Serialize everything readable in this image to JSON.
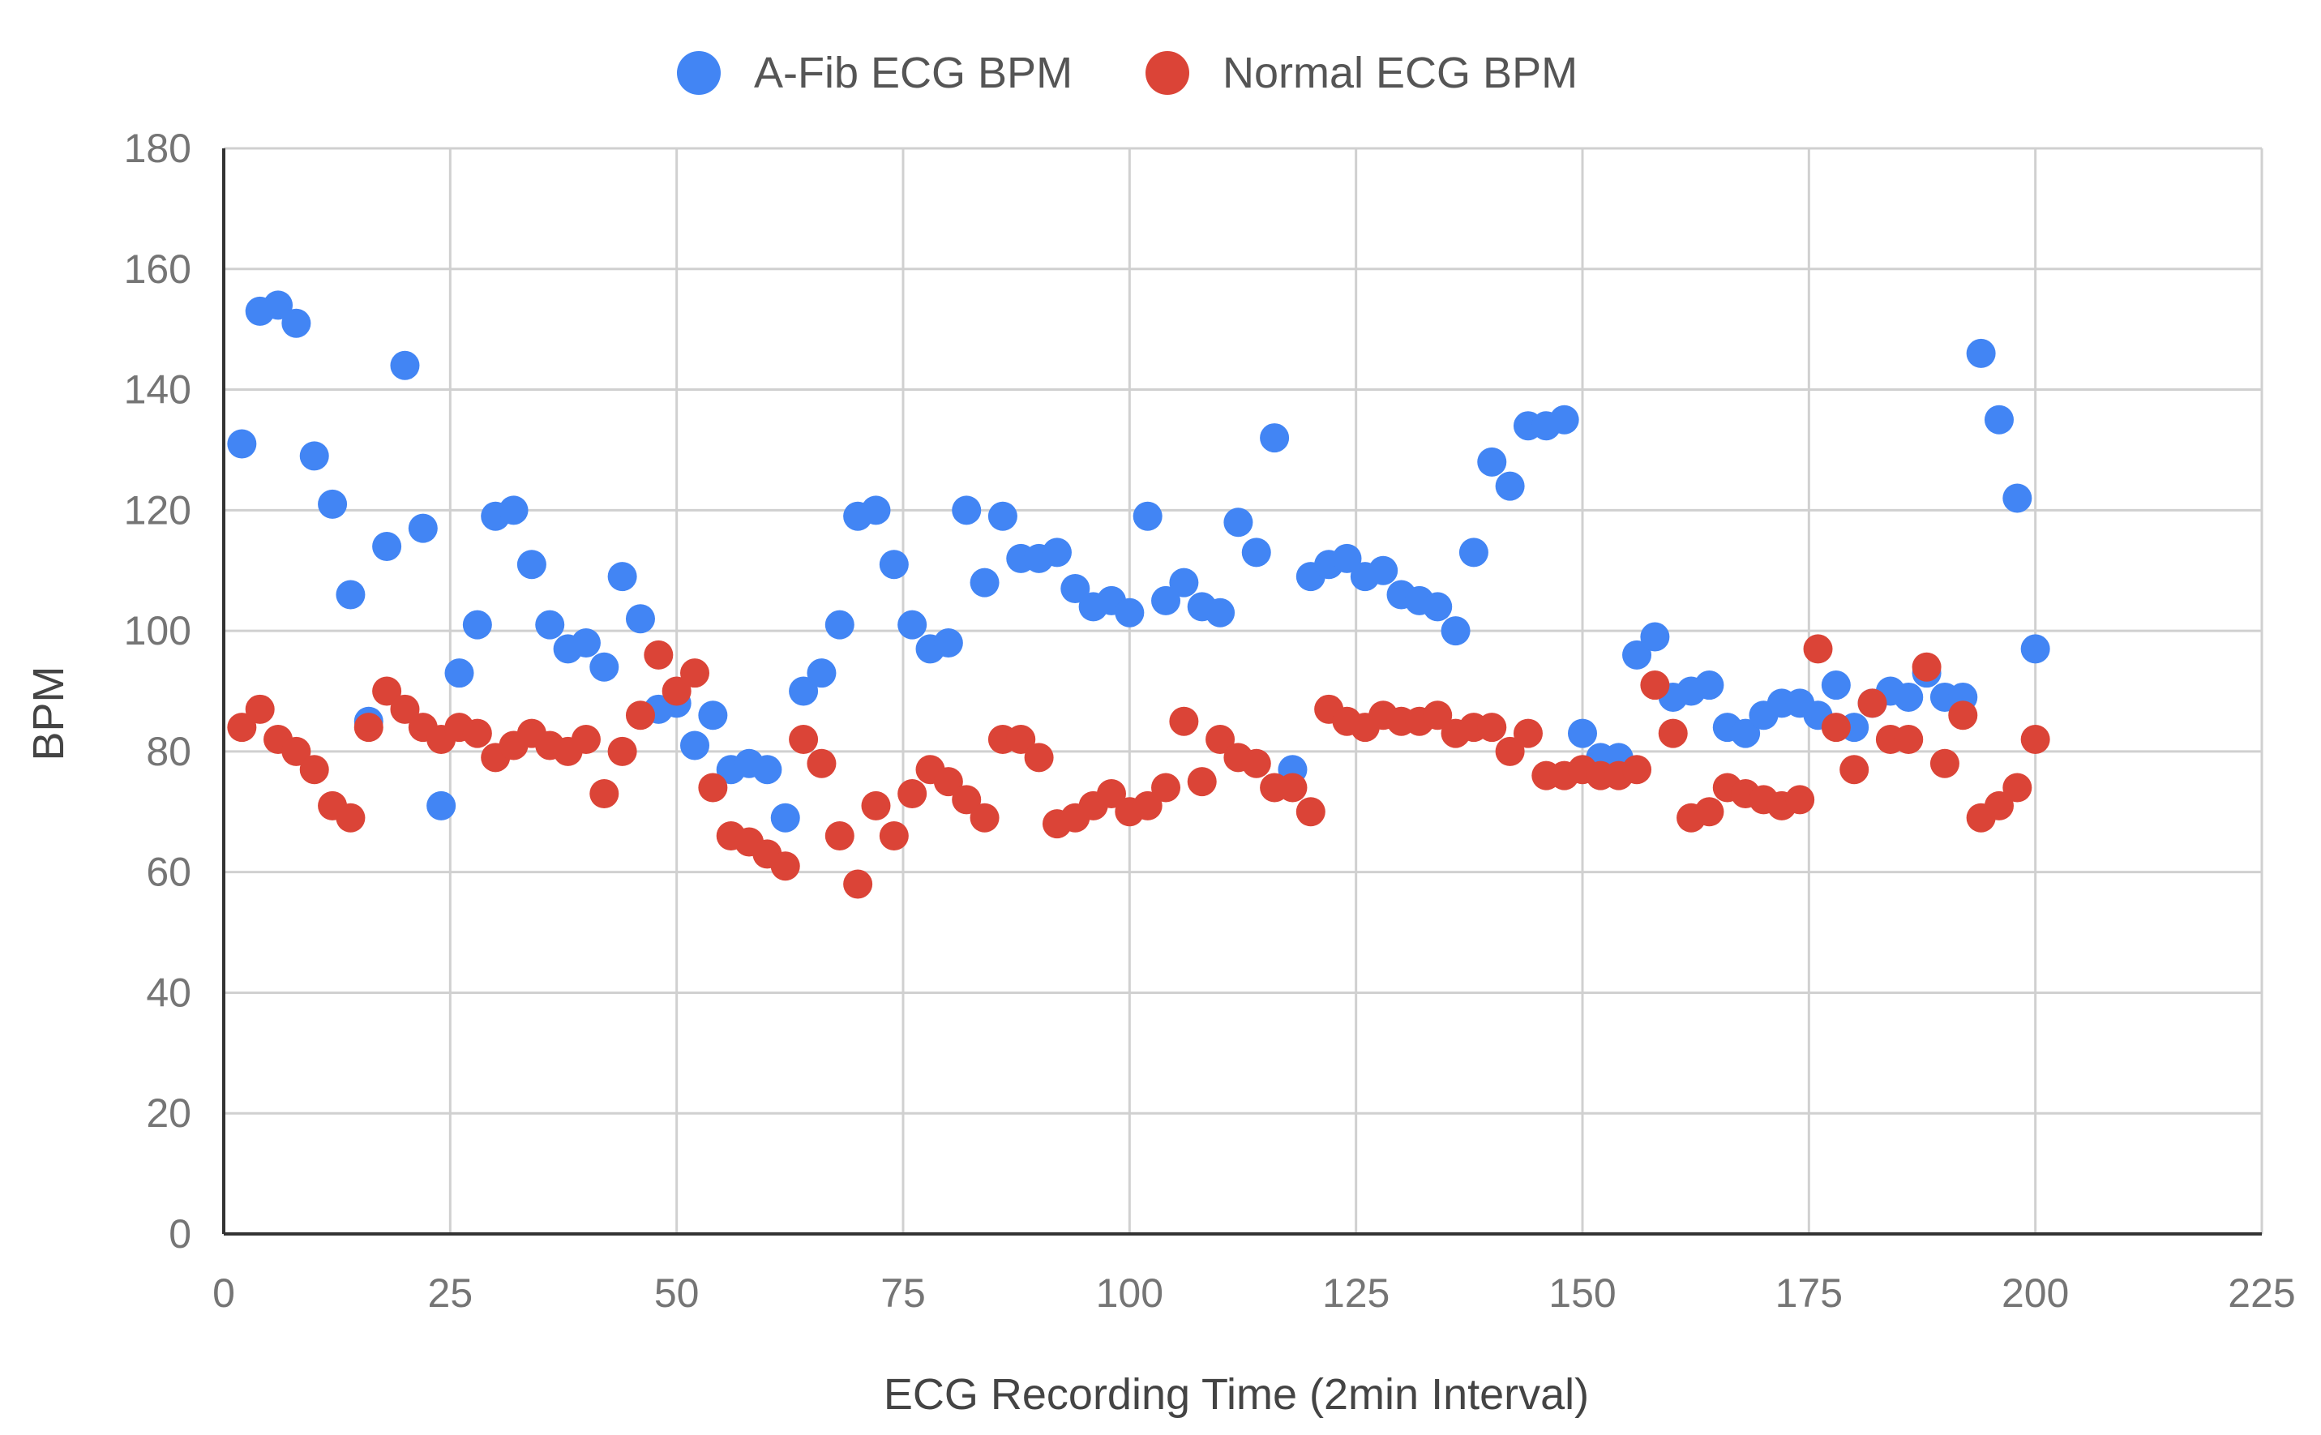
{
  "chart_data": {
    "type": "scatter",
    "title": "",
    "xlabel": "ECG Recording Time (2min Interval)",
    "ylabel": "BPM",
    "xlim": [
      0,
      225
    ],
    "ylim": [
      0,
      180
    ],
    "x_ticks": [
      0,
      25,
      50,
      75,
      100,
      125,
      150,
      175,
      200,
      225
    ],
    "y_ticks": [
      0,
      20,
      40,
      60,
      80,
      100,
      120,
      140,
      160,
      180
    ],
    "grid": true,
    "legend_position": "top",
    "series": [
      {
        "name": "A-Fib ECG BPM",
        "color": "#4285F4",
        "points": [
          [
            2,
            131
          ],
          [
            4,
            153
          ],
          [
            6,
            154
          ],
          [
            8,
            151
          ],
          [
            10,
            129
          ],
          [
            12,
            121
          ],
          [
            14,
            106
          ],
          [
            16,
            85
          ],
          [
            18,
            114
          ],
          [
            20,
            144
          ],
          [
            22,
            117
          ],
          [
            24,
            71
          ],
          [
            26,
            93
          ],
          [
            28,
            101
          ],
          [
            30,
            119
          ],
          [
            32,
            120
          ],
          [
            34,
            111
          ],
          [
            36,
            101
          ],
          [
            38,
            97
          ],
          [
            40,
            98
          ],
          [
            42,
            94
          ],
          [
            44,
            109
          ],
          [
            46,
            102
          ],
          [
            48,
            87
          ],
          [
            50,
            88
          ],
          [
            52,
            81
          ],
          [
            54,
            86
          ],
          [
            56,
            77
          ],
          [
            58,
            78
          ],
          [
            60,
            77
          ],
          [
            62,
            69
          ],
          [
            64,
            90
          ],
          [
            66,
            93
          ],
          [
            68,
            101
          ],
          [
            70,
            119
          ],
          [
            72,
            120
          ],
          [
            74,
            111
          ],
          [
            76,
            101
          ],
          [
            78,
            97
          ],
          [
            80,
            98
          ],
          [
            82,
            120
          ],
          [
            84,
            108
          ],
          [
            86,
            119
          ],
          [
            88,
            112
          ],
          [
            90,
            112
          ],
          [
            92,
            113
          ],
          [
            94,
            107
          ],
          [
            96,
            104
          ],
          [
            98,
            105
          ],
          [
            100,
            103
          ],
          [
            102,
            119
          ],
          [
            104,
            105
          ],
          [
            106,
            108
          ],
          [
            108,
            104
          ],
          [
            110,
            103
          ],
          [
            112,
            118
          ],
          [
            114,
            113
          ],
          [
            116,
            132
          ],
          [
            118,
            77
          ],
          [
            120,
            109
          ],
          [
            122,
            111
          ],
          [
            124,
            112
          ],
          [
            126,
            109
          ],
          [
            128,
            110
          ],
          [
            130,
            106
          ],
          [
            132,
            105
          ],
          [
            134,
            104
          ],
          [
            136,
            100
          ],
          [
            138,
            113
          ],
          [
            140,
            128
          ],
          [
            142,
            124
          ],
          [
            144,
            134
          ],
          [
            146,
            134
          ],
          [
            148,
            135
          ],
          [
            150,
            83
          ],
          [
            152,
            79
          ],
          [
            154,
            79
          ],
          [
            156,
            96
          ],
          [
            158,
            99
          ],
          [
            160,
            89
          ],
          [
            162,
            90
          ],
          [
            164,
            91
          ],
          [
            166,
            84
          ],
          [
            168,
            83
          ],
          [
            170,
            86
          ],
          [
            172,
            88
          ],
          [
            174,
            88
          ],
          [
            176,
            86
          ],
          [
            178,
            91
          ],
          [
            180,
            84
          ],
          [
            182,
            88
          ],
          [
            184,
            90
          ],
          [
            186,
            89
          ],
          [
            188,
            93
          ],
          [
            190,
            89
          ],
          [
            192,
            89
          ],
          [
            194,
            146
          ],
          [
            196,
            135
          ],
          [
            198,
            122
          ],
          [
            200,
            97
          ]
        ]
      },
      {
        "name": "Normal ECG BPM",
        "color": "#DB4437",
        "points": [
          [
            2,
            84
          ],
          [
            4,
            87
          ],
          [
            6,
            82
          ],
          [
            8,
            80
          ],
          [
            10,
            77
          ],
          [
            12,
            71
          ],
          [
            14,
            69
          ],
          [
            16,
            84
          ],
          [
            18,
            90
          ],
          [
            20,
            87
          ],
          [
            22,
            84
          ],
          [
            24,
            82
          ],
          [
            26,
            84
          ],
          [
            28,
            83
          ],
          [
            30,
            79
          ],
          [
            32,
            81
          ],
          [
            34,
            83
          ],
          [
            36,
            81
          ],
          [
            38,
            80
          ],
          [
            40,
            82
          ],
          [
            42,
            73
          ],
          [
            44,
            80
          ],
          [
            46,
            86
          ],
          [
            48,
            96
          ],
          [
            50,
            90
          ],
          [
            52,
            93
          ],
          [
            54,
            74
          ],
          [
            56,
            66
          ],
          [
            58,
            65
          ],
          [
            60,
            63
          ],
          [
            62,
            61
          ],
          [
            64,
            82
          ],
          [
            66,
            78
          ],
          [
            68,
            66
          ],
          [
            70,
            58
          ],
          [
            72,
            71
          ],
          [
            74,
            66
          ],
          [
            76,
            73
          ],
          [
            78,
            77
          ],
          [
            80,
            75
          ],
          [
            82,
            72
          ],
          [
            84,
            69
          ],
          [
            86,
            82
          ],
          [
            88,
            82
          ],
          [
            90,
            79
          ],
          [
            92,
            68
          ],
          [
            94,
            69
          ],
          [
            96,
            71
          ],
          [
            98,
            73
          ],
          [
            100,
            70
          ],
          [
            102,
            71
          ],
          [
            104,
            74
          ],
          [
            106,
            85
          ],
          [
            108,
            75
          ],
          [
            110,
            82
          ],
          [
            112,
            79
          ],
          [
            114,
            78
          ],
          [
            116,
            74
          ],
          [
            118,
            74
          ],
          [
            120,
            70
          ],
          [
            122,
            87
          ],
          [
            124,
            85
          ],
          [
            126,
            84
          ],
          [
            128,
            86
          ],
          [
            130,
            85
          ],
          [
            132,
            85
          ],
          [
            134,
            86
          ],
          [
            136,
            83
          ],
          [
            138,
            84
          ],
          [
            140,
            84
          ],
          [
            142,
            80
          ],
          [
            144,
            83
          ],
          [
            146,
            76
          ],
          [
            148,
            76
          ],
          [
            150,
            77
          ],
          [
            152,
            76
          ],
          [
            154,
            76
          ],
          [
            156,
            77
          ],
          [
            158,
            91
          ],
          [
            160,
            83
          ],
          [
            162,
            69
          ],
          [
            164,
            70
          ],
          [
            166,
            74
          ],
          [
            168,
            73
          ],
          [
            170,
            72
          ],
          [
            172,
            71
          ],
          [
            174,
            72
          ],
          [
            176,
            97
          ],
          [
            178,
            84
          ],
          [
            180,
            77
          ],
          [
            182,
            88
          ],
          [
            184,
            82
          ],
          [
            186,
            82
          ],
          [
            188,
            94
          ],
          [
            190,
            78
          ],
          [
            192,
            86
          ],
          [
            194,
            69
          ],
          [
            196,
            71
          ],
          [
            198,
            74
          ],
          [
            200,
            82
          ]
        ]
      }
    ]
  }
}
